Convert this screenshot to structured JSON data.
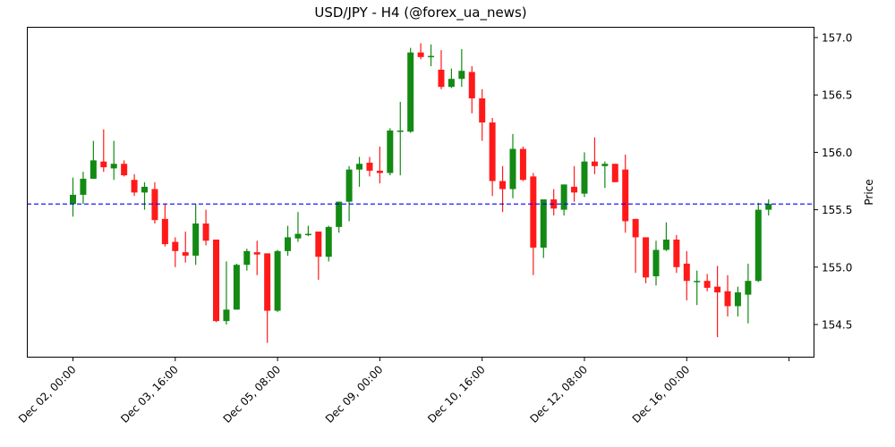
{
  "chart_data": {
    "type": "candlestick",
    "title": "USD/JPY - H4 (@forex_ua_news)",
    "xlabel": "",
    "ylabel": "Price",
    "ylim": [
      154.22,
      157.08
    ],
    "y_ticks": [
      154.5,
      155.0,
      155.5,
      156.0,
      156.5,
      157.0
    ],
    "x_tick_labels": [
      "Dec 02, 00:00",
      "Dec 03, 16:00",
      "Dec 05, 08:00",
      "Dec 09, 00:00",
      "Dec 10, 16:00",
      "Dec 12, 08:00",
      "Dec 16, 00:00",
      ""
    ],
    "x_tick_indices": [
      0,
      10,
      20,
      30,
      40,
      50,
      60,
      70
    ],
    "grid": false,
    "reference_line": {
      "value": 155.55,
      "color": "#0000ff",
      "style": "dashed"
    },
    "colors": {
      "up": "#138a13",
      "down": "#ff1a1a"
    },
    "candles": [
      {
        "o": 155.55,
        "h": 155.78,
        "l": 155.44,
        "c": 155.63
      },
      {
        "o": 155.63,
        "h": 155.83,
        "l": 155.55,
        "c": 155.77
      },
      {
        "o": 155.77,
        "h": 156.1,
        "l": 155.77,
        "c": 155.93
      },
      {
        "o": 155.92,
        "h": 156.2,
        "l": 155.83,
        "c": 155.87
      },
      {
        "o": 155.86,
        "h": 156.1,
        "l": 155.76,
        "c": 155.9
      },
      {
        "o": 155.9,
        "h": 155.93,
        "l": 155.79,
        "c": 155.8
      },
      {
        "o": 155.76,
        "h": 155.81,
        "l": 155.62,
        "c": 155.65
      },
      {
        "o": 155.65,
        "h": 155.74,
        "l": 155.5,
        "c": 155.7
      },
      {
        "o": 155.68,
        "h": 155.74,
        "l": 155.38,
        "c": 155.41
      },
      {
        "o": 155.42,
        "h": 155.55,
        "l": 155.18,
        "c": 155.2
      },
      {
        "o": 155.22,
        "h": 155.26,
        "l": 155.0,
        "c": 155.14
      },
      {
        "o": 155.13,
        "h": 155.31,
        "l": 155.04,
        "c": 155.1
      },
      {
        "o": 155.1,
        "h": 155.55,
        "l": 155.02,
        "c": 155.38
      },
      {
        "o": 155.38,
        "h": 155.5,
        "l": 155.19,
        "c": 155.23
      },
      {
        "o": 155.24,
        "h": 155.24,
        "l": 154.52,
        "c": 154.53
      },
      {
        "o": 154.53,
        "h": 155.05,
        "l": 154.5,
        "c": 154.63
      },
      {
        "o": 154.63,
        "h": 155.03,
        "l": 154.63,
        "c": 155.02
      },
      {
        "o": 155.02,
        "h": 155.16,
        "l": 154.97,
        "c": 155.14
      },
      {
        "o": 155.13,
        "h": 155.23,
        "l": 154.93,
        "c": 155.11
      },
      {
        "o": 155.12,
        "h": 155.12,
        "l": 154.34,
        "c": 154.62
      },
      {
        "o": 154.62,
        "h": 155.15,
        "l": 154.61,
        "c": 155.14
      },
      {
        "o": 155.14,
        "h": 155.36,
        "l": 155.1,
        "c": 155.26
      },
      {
        "o": 155.25,
        "h": 155.48,
        "l": 155.22,
        "c": 155.29
      },
      {
        "o": 155.28,
        "h": 155.36,
        "l": 155.27,
        "c": 155.29
      },
      {
        "o": 155.31,
        "h": 155.31,
        "l": 154.89,
        "c": 155.09
      },
      {
        "o": 155.09,
        "h": 155.36,
        "l": 155.05,
        "c": 155.35
      },
      {
        "o": 155.35,
        "h": 155.57,
        "l": 155.3,
        "c": 155.57
      },
      {
        "o": 155.57,
        "h": 155.88,
        "l": 155.4,
        "c": 155.85
      },
      {
        "o": 155.85,
        "h": 155.96,
        "l": 155.7,
        "c": 155.9
      },
      {
        "o": 155.91,
        "h": 155.96,
        "l": 155.79,
        "c": 155.84
      },
      {
        "o": 155.84,
        "h": 156.05,
        "l": 155.73,
        "c": 155.82
      },
      {
        "o": 155.82,
        "h": 156.21,
        "l": 155.8,
        "c": 156.19
      },
      {
        "o": 156.18,
        "h": 156.44,
        "l": 155.8,
        "c": 156.19
      },
      {
        "o": 156.18,
        "h": 156.91,
        "l": 156.17,
        "c": 156.87
      },
      {
        "o": 156.87,
        "h": 156.95,
        "l": 156.81,
        "c": 156.83
      },
      {
        "o": 156.83,
        "h": 156.94,
        "l": 156.75,
        "c": 156.84
      },
      {
        "o": 156.72,
        "h": 156.89,
        "l": 156.55,
        "c": 156.57
      },
      {
        "o": 156.57,
        "h": 156.73,
        "l": 156.56,
        "c": 156.64
      },
      {
        "o": 156.64,
        "h": 156.9,
        "l": 156.57,
        "c": 156.71
      },
      {
        "o": 156.7,
        "h": 156.75,
        "l": 156.34,
        "c": 156.47
      },
      {
        "o": 156.47,
        "h": 156.55,
        "l": 156.1,
        "c": 156.26
      },
      {
        "o": 156.26,
        "h": 156.3,
        "l": 155.62,
        "c": 155.75
      },
      {
        "o": 155.75,
        "h": 155.88,
        "l": 155.48,
        "c": 155.68
      },
      {
        "o": 155.68,
        "h": 156.16,
        "l": 155.6,
        "c": 156.03
      },
      {
        "o": 156.03,
        "h": 156.05,
        "l": 155.75,
        "c": 155.76
      },
      {
        "o": 155.79,
        "h": 155.82,
        "l": 154.93,
        "c": 155.17
      },
      {
        "o": 155.17,
        "h": 155.58,
        "l": 155.08,
        "c": 155.59
      },
      {
        "o": 155.59,
        "h": 155.68,
        "l": 155.45,
        "c": 155.51
      },
      {
        "o": 155.5,
        "h": 155.72,
        "l": 155.45,
        "c": 155.72
      },
      {
        "o": 155.7,
        "h": 155.88,
        "l": 155.57,
        "c": 155.65
      },
      {
        "o": 155.64,
        "h": 156.0,
        "l": 155.61,
        "c": 155.92
      },
      {
        "o": 155.92,
        "h": 156.13,
        "l": 155.81,
        "c": 155.88
      },
      {
        "o": 155.88,
        "h": 155.92,
        "l": 155.69,
        "c": 155.9
      },
      {
        "o": 155.9,
        "h": 155.9,
        "l": 155.74,
        "c": 155.74
      },
      {
        "o": 155.85,
        "h": 155.98,
        "l": 155.3,
        "c": 155.4
      },
      {
        "o": 155.42,
        "h": 155.42,
        "l": 154.95,
        "c": 155.26
      },
      {
        "o": 155.26,
        "h": 155.26,
        "l": 154.86,
        "c": 154.91
      },
      {
        "o": 154.92,
        "h": 155.23,
        "l": 154.84,
        "c": 155.15
      },
      {
        "o": 155.15,
        "h": 155.39,
        "l": 155.14,
        "c": 155.24
      },
      {
        "o": 155.24,
        "h": 155.28,
        "l": 154.95,
        "c": 155.0
      },
      {
        "o": 155.03,
        "h": 155.14,
        "l": 154.71,
        "c": 154.88
      },
      {
        "o": 154.88,
        "h": 154.97,
        "l": 154.67,
        "c": 154.88
      },
      {
        "o": 154.88,
        "h": 154.94,
        "l": 154.79,
        "c": 154.82
      },
      {
        "o": 154.83,
        "h": 155.01,
        "l": 154.39,
        "c": 154.78
      },
      {
        "o": 154.79,
        "h": 154.93,
        "l": 154.57,
        "c": 154.66
      },
      {
        "o": 154.66,
        "h": 154.83,
        "l": 154.57,
        "c": 154.78
      },
      {
        "o": 154.76,
        "h": 155.03,
        "l": 154.51,
        "c": 154.88
      },
      {
        "o": 154.88,
        "h": 155.56,
        "l": 154.87,
        "c": 155.5
      },
      {
        "o": 155.5,
        "h": 155.59,
        "l": 155.45,
        "c": 155.55
      }
    ]
  }
}
